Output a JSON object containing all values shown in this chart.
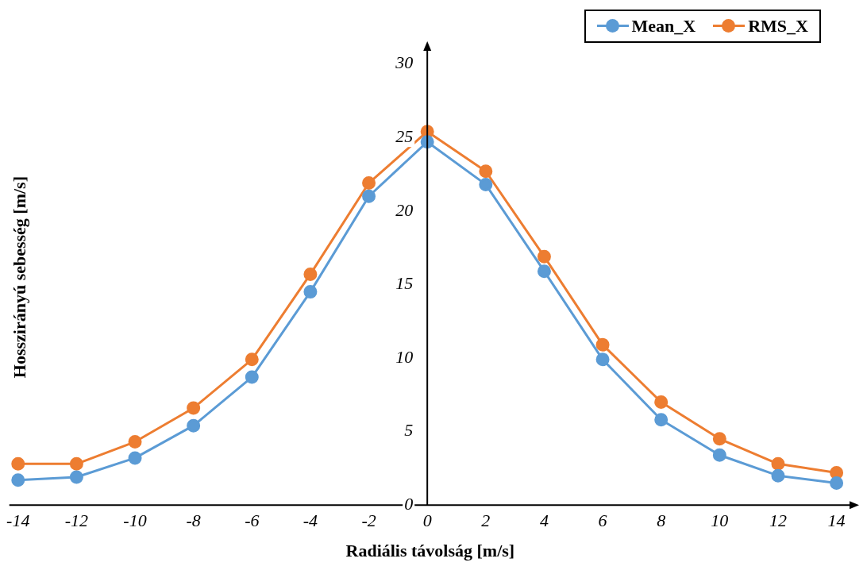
{
  "chart_data": {
    "type": "line",
    "xlabel": "Radiális távolság [m/s]",
    "ylabel": "Hosszirányú sebesség [m/s]",
    "x": [
      -14,
      -12,
      -10,
      -8,
      -6,
      -4,
      -2,
      0,
      2,
      4,
      6,
      8,
      10,
      12,
      14
    ],
    "series": [
      {
        "name": "Mean_X",
        "color": "#5b9bd5",
        "values": [
          1.7,
          1.9,
          3.2,
          5.4,
          8.7,
          14.5,
          21.0,
          24.7,
          21.8,
          15.9,
          9.9,
          5.8,
          3.4,
          2.0,
          1.5
        ]
      },
      {
        "name": "RMS_X",
        "color": "#ed7d31",
        "values": [
          2.8,
          2.8,
          4.3,
          6.6,
          9.9,
          15.7,
          21.9,
          25.4,
          22.7,
          16.9,
          10.9,
          7.0,
          4.5,
          2.8,
          2.2
        ]
      }
    ],
    "xlim": [
      -14.3,
      14.5
    ],
    "ylim": [
      0,
      31
    ],
    "xticks": [
      -14,
      -12,
      -10,
      -8,
      -6,
      -4,
      -2,
      0,
      2,
      4,
      6,
      8,
      10,
      12,
      14
    ],
    "yticks": [
      0,
      5,
      10,
      15,
      20,
      25,
      30
    ],
    "legend": "top right",
    "marker": "circle"
  }
}
